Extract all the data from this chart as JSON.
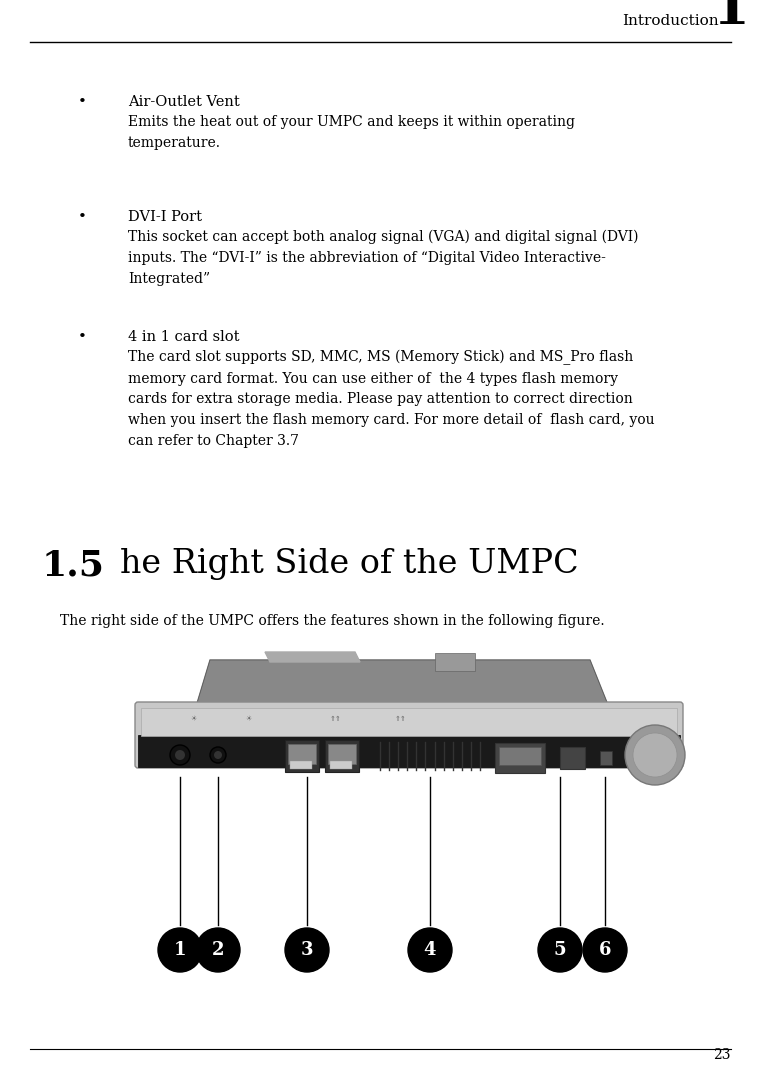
{
  "bg_color": "#ffffff",
  "header_text": "Introduction",
  "header_number": "1",
  "page_number": "23",
  "bullet_items": [
    {
      "title": "Air-Outlet Vent",
      "body": "Emits the heat out of your UMPC and keeps it within operating\ntemperature."
    },
    {
      "title": "DVI-I Port",
      "body": "This socket can accept both analog signal (VGA) and digital signal (DVI)\ninputs. The “DVI-I” is the abbreviation of “Digital Video Interactive-\nIntegrated”"
    },
    {
      "title": "4 in 1 card slot",
      "body": "The card slot supports SD, MMC, MS (Memory Stick) and MS_Pro flash\nmemory card format. You can use either of  the 4 types flash memory\ncards for extra storage media. Please pay attention to correct direction\nwhen you insert the flash memory card. For more detail of  flash card, you\ncan refer to Chapter 3.7"
    }
  ],
  "section_number": "1.5",
  "section_title": "he Right Side of the UMPC",
  "section_body": "The right side of the UMPC offers the features shown in the following figure.",
  "circle_labels": [
    "1",
    "2",
    "3",
    "4",
    "5",
    "6"
  ],
  "header_font_size": 11,
  "title_font_size": 10.5,
  "body_font_size": 10,
  "section_num_font_size": 26,
  "section_title_font_size": 24,
  "page_num_font_size": 10
}
